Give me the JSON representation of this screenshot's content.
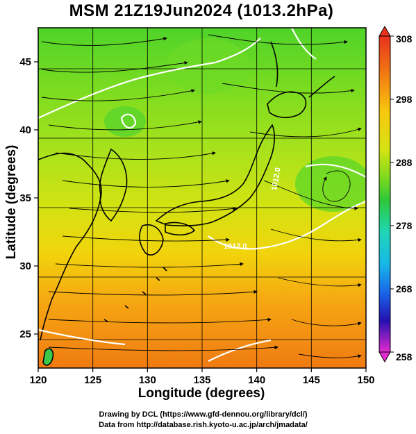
{
  "title": "MSM 21Z19Jun2024 (1013.2hPa)",
  "map": {
    "x_axis": {
      "label": "Longitude (degrees)",
      "range": [
        120,
        150
      ],
      "ticks": [
        120,
        125,
        130,
        135,
        140,
        145,
        150
      ]
    },
    "y_axis": {
      "label": "Latitude  (degrees)",
      "range": [
        22.5,
        47.5
      ],
      "ticks": [
        25,
        30,
        35,
        40,
        45
      ]
    },
    "field": "temperature",
    "contour_labels": [
      "1012.0",
      "1012.0"
    ]
  },
  "colorbar": {
    "ticks": [
      308,
      298,
      288,
      278,
      268,
      258
    ],
    "range": [
      258,
      308
    ]
  },
  "colors": {
    "warm": "#f07f10",
    "mid": "#b5e31c",
    "cool": "#48d128",
    "contour": "#ffffff",
    "streamline": "#000000"
  },
  "credits": {
    "line1": "Drawing by DCL (https://www.gfd-dennou.org/library/dcl/)",
    "line2": "Data from http://database.rish.kyoto-u.ac.jp/arch/jmadata/"
  }
}
